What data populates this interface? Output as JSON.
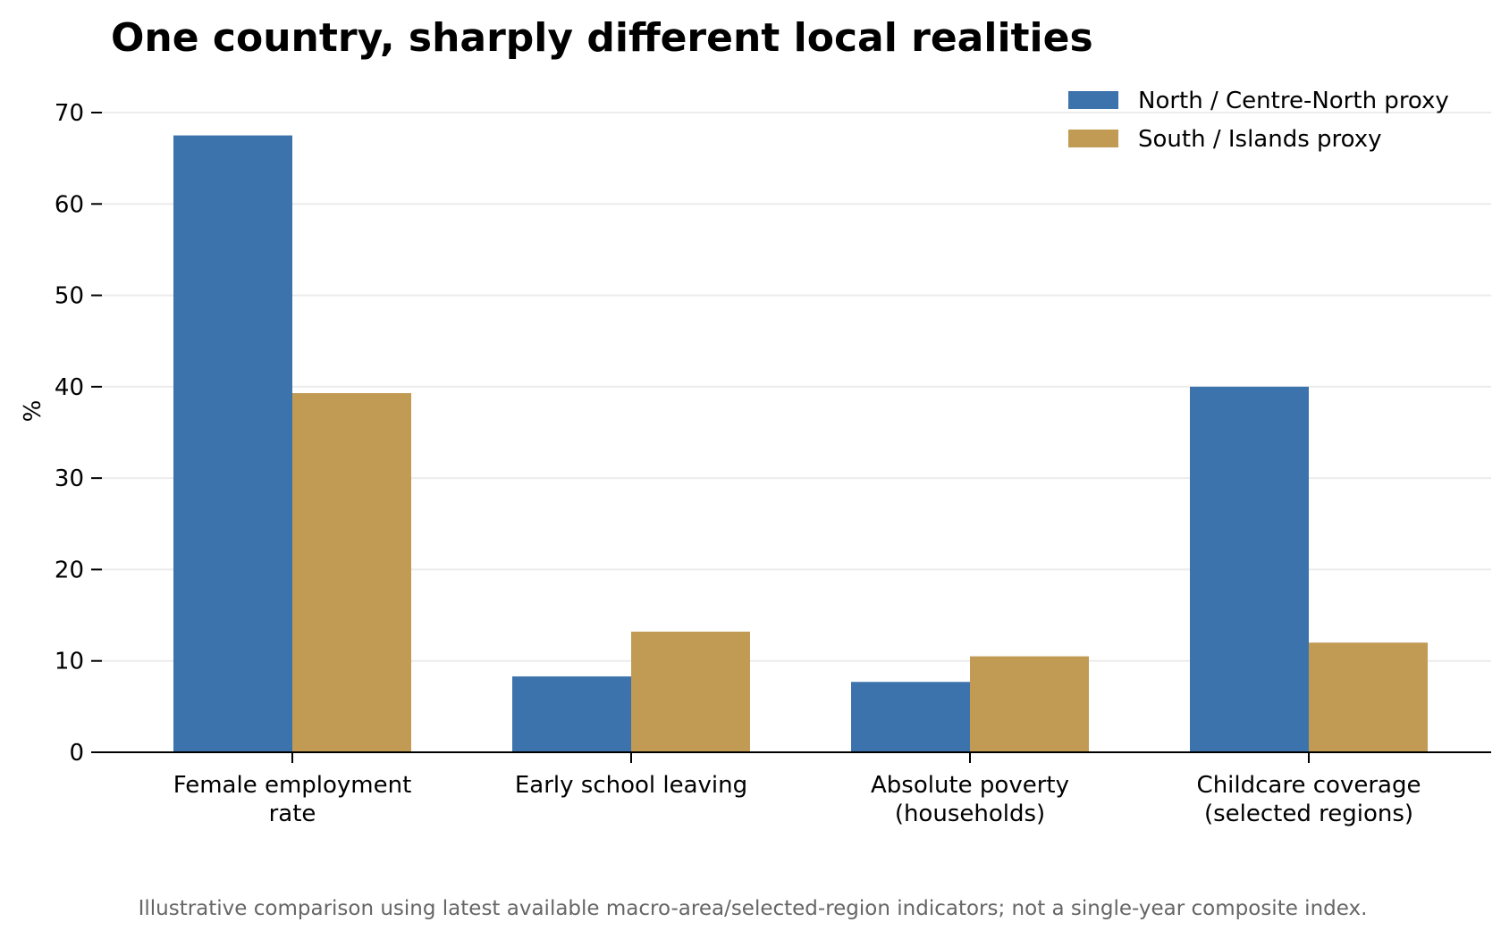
{
  "chart_data": {
    "type": "bar",
    "title": "One country, sharply different local realities",
    "ylabel": "%",
    "xlabel": "",
    "ylim": [
      0,
      70
    ],
    "yticks": [
      0,
      10,
      20,
      30,
      40,
      50,
      60,
      70
    ],
    "grid": true,
    "legend_position": "top-right",
    "categories": [
      [
        "Female employment",
        "rate"
      ],
      [
        "Early school leaving"
      ],
      [
        "Absolute poverty",
        "(households)"
      ],
      [
        "Childcare coverage",
        "(selected regions)"
      ]
    ],
    "series": [
      {
        "name": "North / Centre-North proxy",
        "color": "#3d73ad",
        "values": [
          67.5,
          8.3,
          7.7,
          40.0
        ]
      },
      {
        "name": "South / Islands proxy",
        "color": "#c19a53",
        "values": [
          39.3,
          13.2,
          10.5,
          12.0
        ]
      }
    ],
    "footnote": "Illustrative comparison using latest available macro-area/selected-region indicators; not a single-year composite index."
  }
}
